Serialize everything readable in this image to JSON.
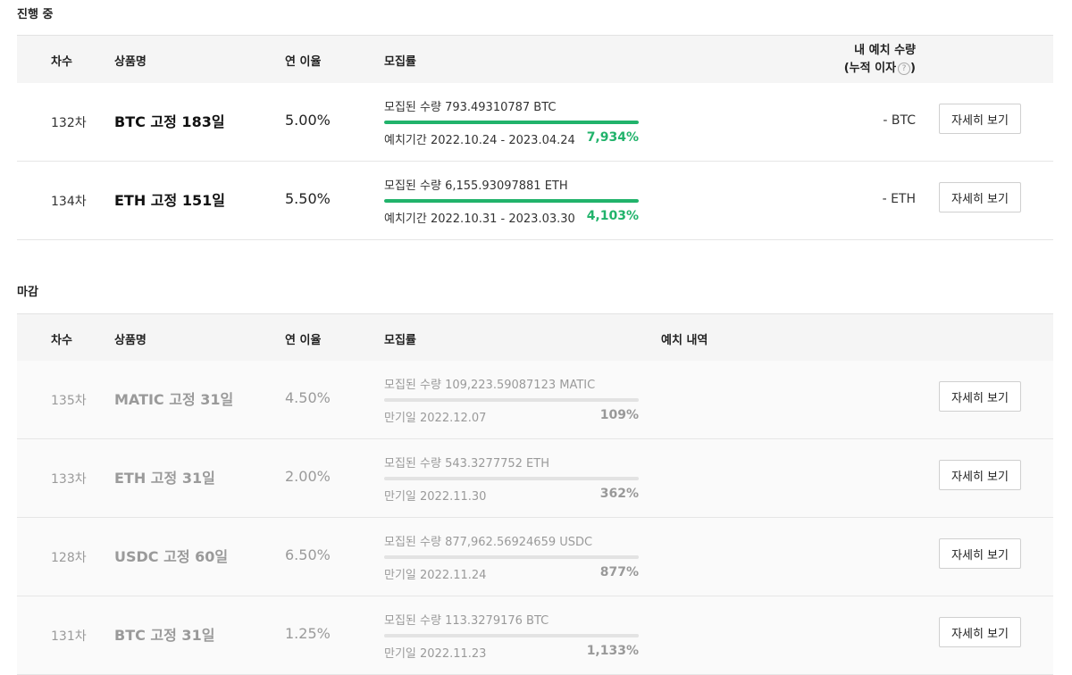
{
  "ongoing": {
    "title": "진행 중",
    "headers": {
      "round": "차수",
      "product": "상품명",
      "rate": "연 이율",
      "recruit": "모집률",
      "my_deposit_line1": "내 예치 수량",
      "my_deposit_line2_prefix": "(누적 이자",
      "my_deposit_line2_suffix": ")"
    },
    "rows": [
      {
        "round": "132차",
        "product": "BTC 고정 183일",
        "rate": "5.00%",
        "amount": "모집된 수량 793.49310787 BTC",
        "period": "예치기간 2022.10.24 - 2023.04.24",
        "percent": "7,934%",
        "progress": 1,
        "my_deposit": "- BTC",
        "button": "자세히 보기"
      },
      {
        "round": "134차",
        "product": "ETH 고정 151일",
        "rate": "5.50%",
        "amount": "모집된 수량 6,155.93097881 ETH",
        "period": "예치기간 2022.10.31 - 2023.03.30",
        "percent": "4,103%",
        "progress": 1,
        "my_deposit": "- ETH",
        "button": "자세히 보기"
      }
    ]
  },
  "closed": {
    "title": "마감",
    "headers": {
      "round": "차수",
      "product": "상품명",
      "rate": "연 이율",
      "recruit": "모집률",
      "history": "예치 내역"
    },
    "rows": [
      {
        "round": "135차",
        "product": "MATIC 고정 31일",
        "rate": "4.50%",
        "amount": "모집된 수량 109,223.59087123 MATIC",
        "period": "만기일 2022.12.07",
        "percent": "109%",
        "progress": 1,
        "button": "자세히 보기"
      },
      {
        "round": "133차",
        "product": "ETH 고정 31일",
        "rate": "2.00%",
        "amount": "모집된 수량 543.3277752 ETH",
        "period": "만기일 2022.11.30",
        "percent": "362%",
        "progress": 1,
        "button": "자세히 보기"
      },
      {
        "round": "128차",
        "product": "USDC 고정 60일",
        "rate": "6.50%",
        "amount": "모집된 수량 877,962.56924659 USDC",
        "period": "만기일 2022.11.24",
        "percent": "877%",
        "progress": 1,
        "button": "자세히 보기"
      },
      {
        "round": "131차",
        "product": "BTC 고정 31일",
        "rate": "1.25%",
        "amount": "모집된 수량 113.3279176 BTC",
        "period": "만기일 2022.11.23",
        "percent": "1,133%",
        "progress": 1,
        "button": "자세히 보기"
      }
    ]
  },
  "colors": {
    "accent_green": "#21b36b",
    "header_bg": "#f5f5f5",
    "muted_text": "#9a9a9a"
  },
  "icons": {
    "help": "question-circle-icon"
  }
}
